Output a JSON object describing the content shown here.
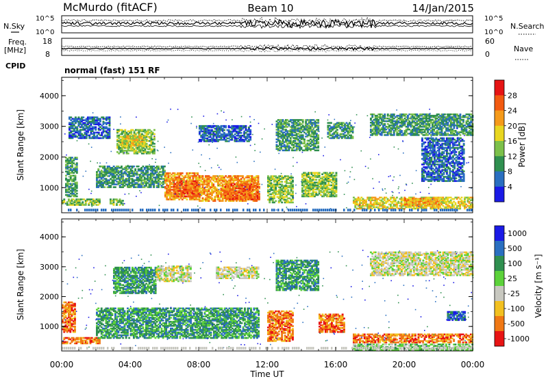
{
  "header": {
    "station": "McMurdo (fitACF)",
    "beam": "Beam 10",
    "date": "14/Jan/2015"
  },
  "strip_panels": {
    "noise": {
      "left_label": "N.Sky",
      "right_label": "N.Search",
      "left_ticks": [
        "10^5",
        "10^0"
      ],
      "right_ticks": [
        "10^5",
        "10^0"
      ]
    },
    "frequency": {
      "left_label_line1": "Freq.",
      "left_label_line2": "[MHz]",
      "right_label": "Nave",
      "left_ticks": [
        "18",
        "8"
      ],
      "right_ticks": [
        "60",
        "0"
      ]
    },
    "cpid": {
      "label": "CPID",
      "value": "normal (fast) 151 RF"
    }
  },
  "chart_data": [
    {
      "type": "heatmap",
      "name": "power",
      "ylabel": "Slant Range [km]",
      "ylim": [
        180,
        4600
      ],
      "yticks": [
        1000,
        2000,
        3000,
        4000
      ],
      "xlim_hours": [
        0,
        24
      ],
      "colorbar": {
        "label": "Power [dB]",
        "ticks": [
          "4",
          "8",
          "12",
          "16",
          "20",
          "24",
          "28"
        ],
        "colors": [
          "#1a1ae6",
          "#2a6fc0",
          "#2f8f4f",
          "#7cc04a",
          "#e8d620",
          "#f59a1a",
          "#f25a10",
          "#e61414"
        ],
        "range": [
          0,
          32
        ]
      },
      "echo_regions": [
        {
          "t_start": 0.2,
          "t_end": 0.9,
          "r_start": 700,
          "r_end": 2000,
          "level": 2
        },
        {
          "t_start": 0.4,
          "t_end": 2.8,
          "r_start": 2600,
          "r_end": 3300,
          "level": 1
        },
        {
          "t_start": 0.0,
          "t_end": 2.2,
          "r_start": 420,
          "r_end": 620,
          "level": 3
        },
        {
          "t_start": 2.8,
          "t_end": 3.6,
          "r_start": 420,
          "r_end": 620,
          "level": 3
        },
        {
          "t_start": 3.2,
          "t_end": 5.4,
          "r_start": 2100,
          "r_end": 2900,
          "level": 3
        },
        {
          "t_start": 3.5,
          "t_end": 4.8,
          "r_start": 2350,
          "r_end": 2700,
          "level": 4
        },
        {
          "t_start": 2.0,
          "t_end": 6.0,
          "r_start": 1000,
          "r_end": 1700,
          "level": 2
        },
        {
          "t_start": 6.0,
          "t_end": 8.0,
          "r_start": 600,
          "r_end": 1500,
          "level": 5
        },
        {
          "t_start": 6.5,
          "t_end": 8.0,
          "r_start": 700,
          "r_end": 1200,
          "level": 6
        },
        {
          "t_start": 8.0,
          "t_end": 11.5,
          "r_start": 550,
          "r_end": 1400,
          "level": 5
        },
        {
          "t_start": 9.5,
          "t_end": 11.5,
          "r_start": 600,
          "r_end": 1100,
          "level": 6
        },
        {
          "t_start": 8.0,
          "t_end": 11.0,
          "r_start": 2500,
          "r_end": 3000,
          "level": 1
        },
        {
          "t_start": 12.0,
          "t_end": 13.5,
          "r_start": 500,
          "r_end": 1400,
          "level": 3
        },
        {
          "t_start": 12.5,
          "t_end": 15.0,
          "r_start": 2200,
          "r_end": 3200,
          "level": 2
        },
        {
          "t_start": 14.0,
          "t_end": 16.0,
          "r_start": 700,
          "r_end": 1500,
          "level": 3
        },
        {
          "t_start": 15.5,
          "t_end": 17.0,
          "r_start": 2600,
          "r_end": 3100,
          "level": 2
        },
        {
          "t_start": 17.0,
          "t_end": 24.0,
          "r_start": 300,
          "r_end": 700,
          "level": 4
        },
        {
          "t_start": 20.0,
          "t_end": 22.0,
          "r_start": 400,
          "r_end": 650,
          "level": 5
        },
        {
          "t_start": 18.0,
          "t_end": 24.0,
          "r_start": 2700,
          "r_end": 3400,
          "level": 2
        },
        {
          "t_start": 21.0,
          "t_end": 23.5,
          "r_start": 1200,
          "r_end": 2600,
          "level": 1
        }
      ]
    },
    {
      "type": "heatmap",
      "name": "velocity",
      "ylabel": "Slant Range [km]",
      "ylim": [
        180,
        4600
      ],
      "yticks": [
        1000,
        2000,
        3000,
        4000
      ],
      "xlim_hours": [
        0,
        24
      ],
      "xticks": [
        "00:00",
        "04:00",
        "08:00",
        "12:00",
        "16:00",
        "20:00",
        "00:00"
      ],
      "xlabel": "Time UT",
      "colorbar": {
        "label": "Velocity [m s⁻¹]",
        "ticks": [
          "1000",
          "500",
          "100",
          "25",
          "-25",
          "-100",
          "-500",
          "-1000"
        ],
        "colors": [
          "#1a1ae6",
          "#2a6fc0",
          "#2f8f4f",
          "#5cd23a",
          "#c8c8c0",
          "#f2c020",
          "#f07814",
          "#e81414"
        ]
      },
      "echo_regions": [
        {
          "t_start": 0.0,
          "t_end": 0.8,
          "r_start": 800,
          "r_end": 1800,
          "level": 6
        },
        {
          "t_start": 0.0,
          "t_end": 2.2,
          "r_start": 420,
          "r_end": 620,
          "level": 6
        },
        {
          "t_start": 3.0,
          "t_end": 5.5,
          "r_start": 2100,
          "r_end": 3000,
          "level": 2
        },
        {
          "t_start": 5.5,
          "t_end": 7.5,
          "r_start": 2500,
          "r_end": 3000,
          "level": 4
        },
        {
          "t_start": 2.0,
          "t_end": 11.5,
          "r_start": 600,
          "r_end": 1600,
          "level": 2
        },
        {
          "t_start": 9.0,
          "t_end": 11.5,
          "r_start": 2600,
          "r_end": 3000,
          "level": 4
        },
        {
          "t_start": 12.0,
          "t_end": 13.5,
          "r_start": 500,
          "r_end": 1500,
          "level": 6
        },
        {
          "t_start": 12.5,
          "t_end": 15.0,
          "r_start": 2200,
          "r_end": 3200,
          "level": 2
        },
        {
          "t_start": 15.0,
          "t_end": 16.5,
          "r_start": 800,
          "r_end": 1400,
          "level": 6
        },
        {
          "t_start": 17.0,
          "t_end": 24.0,
          "r_start": 200,
          "r_end": 400,
          "level": 3
        },
        {
          "t_start": 17.0,
          "t_end": 24.0,
          "r_start": 450,
          "r_end": 750,
          "level": 6
        },
        {
          "t_start": 18.0,
          "t_end": 24.0,
          "r_start": 2700,
          "r_end": 3500,
          "level": 4
        },
        {
          "t_start": 22.5,
          "t_end": 23.5,
          "r_start": 1200,
          "r_end": 1500,
          "level": 1
        }
      ]
    }
  ]
}
